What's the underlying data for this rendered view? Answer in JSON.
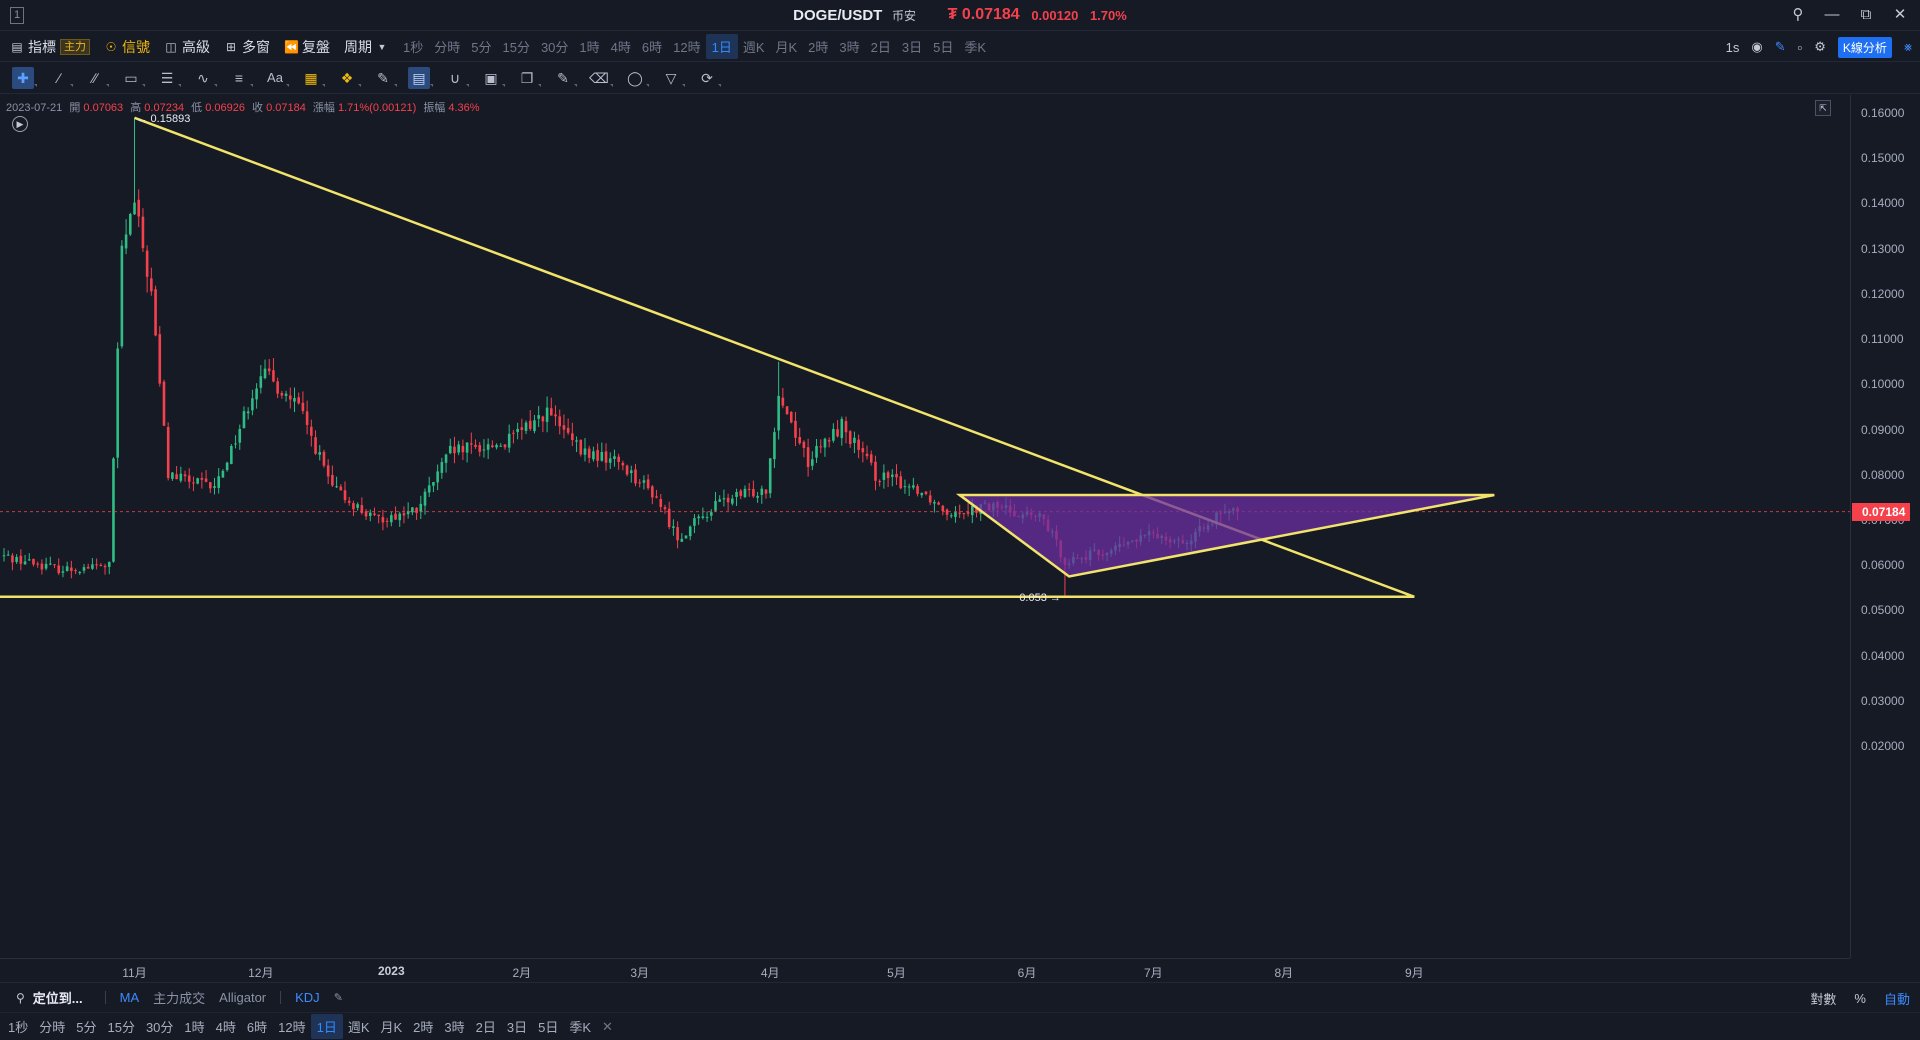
{
  "window": {
    "number": "1",
    "pair": "DOGE/USDT",
    "exchange": "币安",
    "price": "₮ 0.07184",
    "change_abs": "0.00120",
    "change_pct": "1.70%"
  },
  "toolbar": {
    "indicators": "指標",
    "main_tag": "主力",
    "signals": "信號",
    "advanced": "高級",
    "multi_window": "多窗",
    "replay": "复盤",
    "cycle": "周期",
    "periods": [
      "1秒",
      "分時",
      "5分",
      "15分",
      "30分",
      "1時",
      "4時",
      "6時",
      "12時",
      "1日",
      "週K",
      "月K",
      "2時",
      "3時",
      "2日",
      "3日",
      "5日",
      "季K"
    ],
    "active_period": "1日",
    "right_interval": "1s",
    "kline_analysis": "K線分析"
  },
  "drawing_tools": [
    "crosshair-icon",
    "trend-line-icon",
    "parallel-channel-icon",
    "rectangle-icon",
    "horizontal-lines-icon",
    "wave-icon",
    "fibonacci-icon",
    "text-icon",
    "ruler-icon",
    "measure-icon",
    "pencil-icon",
    "pattern-icon",
    "magnet-icon",
    "lock-icon",
    "clone-icon",
    "edit-icon",
    "trash-icon",
    "hide-icon",
    "filter-icon",
    "sync-icon"
  ],
  "ohlc": {
    "date": "2023-07-21",
    "open_label": "開",
    "open": "0.07063",
    "high_label": "高",
    "high": "0.07234",
    "low_label": "低",
    "low": "0.06926",
    "close_label": "收",
    "close": "0.07184",
    "chg_label": "漲幅",
    "chg": "1.71%(0.00121)",
    "amp_label": "振幅",
    "amp": "4.36%"
  },
  "chart_data": {
    "type": "candlestick",
    "symbol": "DOGE/USDT",
    "timeframe": "1日",
    "ylim": [
      0.015,
      0.165
    ],
    "y_ticks": [
      "0.16000",
      "0.15000",
      "0.14000",
      "0.13000",
      "0.12000",
      "0.11000",
      "0.10000",
      "0.09000",
      "0.08000",
      "0.07000",
      "0.06000",
      "0.05000",
      "0.04000",
      "0.03000",
      "0.02000"
    ],
    "y_tick_values": [
      0.16,
      0.15,
      0.14,
      0.13,
      0.12,
      0.11,
      0.1,
      0.09,
      0.08,
      0.07,
      0.06,
      0.05,
      0.04,
      0.03,
      0.02
    ],
    "x_ticks": [
      {
        "label": "11月",
        "date": "2022-11-01"
      },
      {
        "label": "12月",
        "date": "2022-12-01"
      },
      {
        "label": "2023",
        "date": "2023-01-01",
        "bold": true
      },
      {
        "label": "2月",
        "date": "2023-02-01"
      },
      {
        "label": "3月",
        "date": "2023-03-01"
      },
      {
        "label": "4月",
        "date": "2023-04-01"
      },
      {
        "label": "5月",
        "date": "2023-05-01"
      },
      {
        "label": "6月",
        "date": "2023-06-01"
      },
      {
        "label": "7月",
        "date": "2023-07-01"
      },
      {
        "label": "8月",
        "date": "2023-08-01"
      },
      {
        "label": "9月",
        "date": "2023-09-01"
      }
    ],
    "current_price": "0.07184",
    "current_price_value": 0.07184,
    "high_marker": {
      "label": "0.15893",
      "value": 0.15893,
      "date": "2022-11-01"
    },
    "low_marker": {
      "label": "0.053",
      "value": 0.053,
      "date": "2023-06-10"
    },
    "closes_approx": [
      {
        "date": "2022-10-01",
        "close": 0.062
      },
      {
        "date": "2022-10-15",
        "close": 0.059
      },
      {
        "date": "2022-10-26",
        "close": 0.06
      },
      {
        "date": "2022-10-29",
        "close": 0.13
      },
      {
        "date": "2022-11-01",
        "close": 0.14
      },
      {
        "date": "2022-11-05",
        "close": 0.12
      },
      {
        "date": "2022-11-09",
        "close": 0.08
      },
      {
        "date": "2022-11-20",
        "close": 0.077
      },
      {
        "date": "2022-11-25",
        "close": 0.088
      },
      {
        "date": "2022-12-01",
        "close": 0.103
      },
      {
        "date": "2022-12-10",
        "close": 0.095
      },
      {
        "date": "2022-12-18",
        "close": 0.077
      },
      {
        "date": "2022-12-28",
        "close": 0.07
      },
      {
        "date": "2023-01-07",
        "close": 0.072
      },
      {
        "date": "2023-01-15",
        "close": 0.085
      },
      {
        "date": "2023-01-28",
        "close": 0.087
      },
      {
        "date": "2023-02-07",
        "close": 0.094
      },
      {
        "date": "2023-02-15",
        "close": 0.085
      },
      {
        "date": "2023-02-24",
        "close": 0.083
      },
      {
        "date": "2023-03-05",
        "close": 0.075
      },
      {
        "date": "2023-03-10",
        "close": 0.066
      },
      {
        "date": "2023-03-20",
        "close": 0.074
      },
      {
        "date": "2023-03-31",
        "close": 0.077
      },
      {
        "date": "2023-04-03",
        "close": 0.098
      },
      {
        "date": "2023-04-10",
        "close": 0.083
      },
      {
        "date": "2023-04-18",
        "close": 0.091
      },
      {
        "date": "2023-04-26",
        "close": 0.08
      },
      {
        "date": "2023-05-06",
        "close": 0.077
      },
      {
        "date": "2023-05-13",
        "close": 0.072
      },
      {
        "date": "2023-05-25",
        "close": 0.073
      },
      {
        "date": "2023-06-05",
        "close": 0.07
      },
      {
        "date": "2023-06-10",
        "close": 0.061
      },
      {
        "date": "2023-06-20",
        "close": 0.063
      },
      {
        "date": "2023-07-01",
        "close": 0.067
      },
      {
        "date": "2023-07-10",
        "close": 0.065
      },
      {
        "date": "2023-07-14",
        "close": 0.07
      },
      {
        "date": "2023-07-21",
        "close": 0.07184
      }
    ],
    "drawings": [
      {
        "type": "trend-line",
        "from": {
          "date": "2022-11-01",
          "value": 0.15893
        },
        "to": {
          "date": "2023-09-01",
          "value": 0.053
        }
      },
      {
        "type": "horizontal-line",
        "value": 0.053
      },
      {
        "type": "triangle",
        "points": [
          {
            "date": "2023-05-16",
            "value": 0.0755
          },
          {
            "date": "2023-06-11",
            "value": 0.0575
          },
          {
            "date": "2023-09-20",
            "value": 0.0755
          }
        ],
        "fill": "#6b2fa0"
      }
    ],
    "colors": {
      "up": "#2ebd85",
      "down": "#f5414c",
      "drawing": "#f2e36a",
      "triangle_fill": "#6b2fa0",
      "background": "#161a25"
    }
  },
  "bottom": {
    "locate": "定位到...",
    "indicators": [
      "MA",
      "主力成交",
      "Alligator"
    ],
    "sub_indicator": "KDJ",
    "log_label": "對數",
    "pct_label": "%",
    "auto_label": "自動",
    "periods": [
      "1秒",
      "分時",
      "5分",
      "15分",
      "30分",
      "1時",
      "4時",
      "6時",
      "12時",
      "1日",
      "週K",
      "月K",
      "2時",
      "3時",
      "2日",
      "3日",
      "5日",
      "季K"
    ],
    "active_period": "1日"
  }
}
